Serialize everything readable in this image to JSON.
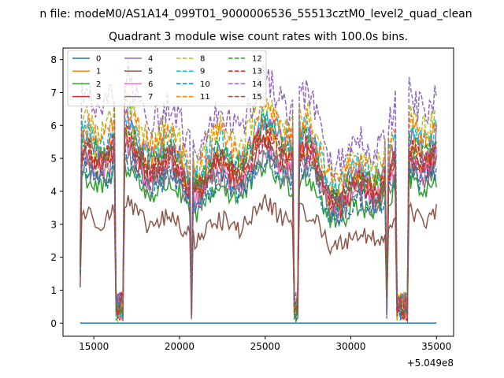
{
  "chart_data": {
    "type": "line",
    "suptitle": "n file: modeM0/AS1A14_099T01_9000006536_55513cztM0_level2_quad_clean",
    "title": "Quadrant 3 module wise count rates with 100.0s bins.",
    "xlabel": "",
    "ylabel": "",
    "x_offset_label": "+5.049e8",
    "xlim": [
      13200,
      36000
    ],
    "ylim": [
      -0.4,
      8.35
    ],
    "xticks": [
      15000,
      20000,
      25000,
      30000,
      35000
    ],
    "xtick_labels": [
      "15000",
      "20000",
      "25000",
      "30000",
      "35000"
    ],
    "yticks": [
      0,
      1,
      2,
      3,
      4,
      5,
      6,
      7,
      8
    ],
    "ytick_labels": [
      "0",
      "1",
      "2",
      "3",
      "4",
      "5",
      "6",
      "7",
      "8"
    ],
    "x_range": [
      14200,
      35000
    ],
    "bin_width": 100,
    "legend": {
      "location": "top-left",
      "columns": 4
    },
    "gaps": [
      [
        16300,
        16700
      ],
      [
        20650,
        20750
      ],
      [
        26650,
        26950
      ],
      [
        32050,
        32150
      ],
      [
        32700,
        33300
      ]
    ],
    "series": [
      {
        "name": "0",
        "color": "#1f77b4",
        "dash": false,
        "level": 0.0
      },
      {
        "name": "1",
        "color": "#ff7f0e",
        "dash": false,
        "level": 5.0
      },
      {
        "name": "2",
        "color": "#2ca02c",
        "dash": false,
        "level": 4.1
      },
      {
        "name": "3",
        "color": "#d62728",
        "dash": false,
        "level": 4.7
      },
      {
        "name": "4",
        "color": "#9467bd",
        "dash": false,
        "level": 5.2
      },
      {
        "name": "5",
        "color": "#8c564b",
        "dash": false,
        "level": 3.1
      },
      {
        "name": "6",
        "color": "#e377c2",
        "dash": false,
        "level": 4.6
      },
      {
        "name": "7",
        "color": "#7f7f7f",
        "dash": false,
        "level": 4.4
      },
      {
        "name": "8",
        "color": "#bcbd22",
        "dash": true,
        "level": 5.8
      },
      {
        "name": "9",
        "color": "#17becf",
        "dash": true,
        "level": 5.4
      },
      {
        "name": "10",
        "color": "#1f77b4",
        "dash": true,
        "level": 4.3
      },
      {
        "name": "11",
        "color": "#ff7f0e",
        "dash": true,
        "level": 5.6
      },
      {
        "name": "12",
        "color": "#2ca02c",
        "dash": true,
        "level": 5.1
      },
      {
        "name": "13",
        "color": "#d62728",
        "dash": true,
        "level": 4.9
      },
      {
        "name": "14",
        "color": "#9467bd",
        "dash": true,
        "level": 6.4
      },
      {
        "name": "15",
        "color": "#8c564b",
        "dash": true,
        "level": 4.8
      }
    ]
  }
}
